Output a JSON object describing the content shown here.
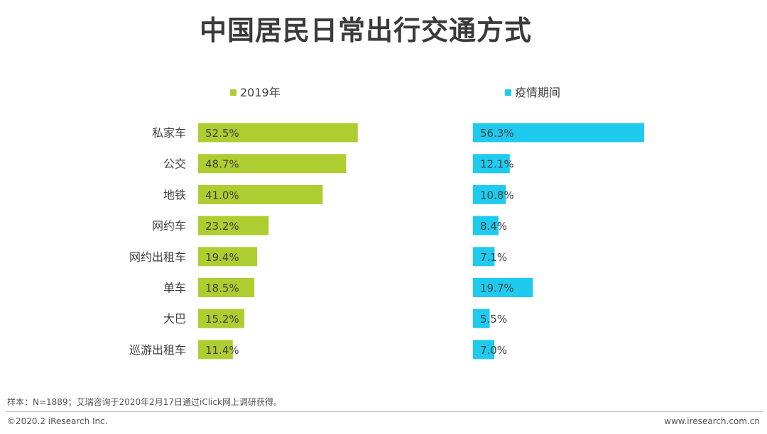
{
  "title": "中国居民日常出行交通方式",
  "colors": {
    "series_2019": "#aecd30",
    "series_epidemic": "#1ecbef"
  },
  "chart_data": {
    "type": "bar",
    "orientation": "horizontal",
    "categories": [
      "私家车",
      "公交",
      "地铁",
      "网约车",
      "网约出租车",
      "单车",
      "大巴",
      "巡游出租车"
    ],
    "series": [
      {
        "name": "2019年",
        "values": [
          52.5,
          48.7,
          41.0,
          23.2,
          19.4,
          18.5,
          15.2,
          11.4
        ],
        "labels": [
          "52.5%",
          "48.7%",
          "41.0%",
          "23.2%",
          "19.4%",
          "18.5%",
          "15.2%",
          "11.4%"
        ]
      },
      {
        "name": "疫情期间",
        "values": [
          56.3,
          12.1,
          10.8,
          8.4,
          7.1,
          19.7,
          5.5,
          7.0
        ],
        "labels": [
          "56.3%",
          "12.1%",
          "10.8%",
          "8.4%",
          "7.1%",
          "19.7%",
          "5.5%",
          "7.0%"
        ]
      }
    ],
    "unit": "%",
    "xlim": [
      0,
      60
    ],
    "legend": "top",
    "grid": false
  },
  "footer": {
    "note": "样本：N=1889；艾瑞咨询于2020年2月17日通过iClick网上调研获得。",
    "copyright": "©2020.2 iResearch Inc.",
    "website": "www.iresearch.com.cn"
  }
}
